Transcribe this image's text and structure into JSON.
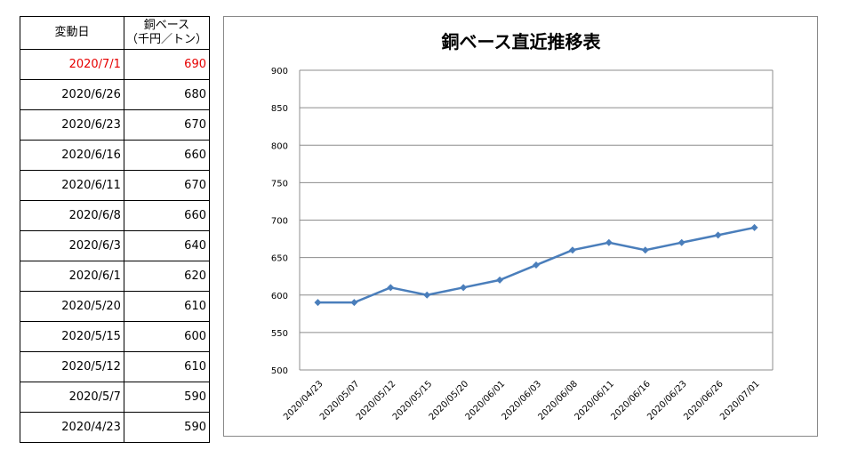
{
  "table": {
    "header": {
      "date": "変動日",
      "value_line1": "銅ベース",
      "value_line2": "（千円／トン）"
    },
    "rows": [
      {
        "date": "2020/7/1",
        "value": "690",
        "highlight": true
      },
      {
        "date": "2020/6/26",
        "value": "680"
      },
      {
        "date": "2020/6/23",
        "value": "670"
      },
      {
        "date": "2020/6/16",
        "value": "660"
      },
      {
        "date": "2020/6/11",
        "value": "670"
      },
      {
        "date": "2020/6/8",
        "value": "660"
      },
      {
        "date": "2020/6/3",
        "value": "640"
      },
      {
        "date": "2020/6/1",
        "value": "620"
      },
      {
        "date": "2020/5/20",
        "value": "610"
      },
      {
        "date": "2020/5/15",
        "value": "600"
      },
      {
        "date": "2020/5/12",
        "value": "610"
      },
      {
        "date": "2020/5/7",
        "value": "590"
      },
      {
        "date": "2020/4/23",
        "value": "590"
      }
    ],
    "highlight_color": "#e60000"
  },
  "chart_data": {
    "type": "line",
    "title": "銅ベース直近推移表",
    "categories": [
      "2020/04/23",
      "2020/05/07",
      "2020/05/12",
      "2020/05/15",
      "2020/05/20",
      "2020/06/01",
      "2020/06/03",
      "2020/06/08",
      "2020/06/11",
      "2020/06/16",
      "2020/06/23",
      "2020/06/26",
      "2020/07/01"
    ],
    "values": [
      590,
      590,
      610,
      600,
      610,
      620,
      640,
      660,
      670,
      660,
      670,
      680,
      690
    ],
    "ylim": [
      500,
      900
    ],
    "yticks": [
      900,
      850,
      800,
      750,
      700,
      650,
      600,
      550,
      500
    ],
    "grid": true,
    "series_color": "#4a7ebb"
  }
}
